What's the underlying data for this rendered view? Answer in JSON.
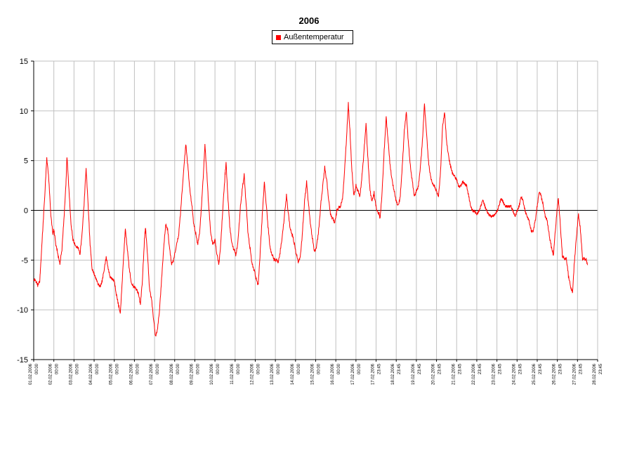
{
  "chart_data": {
    "type": "line",
    "title": "2006",
    "xlabel": "",
    "ylabel": "",
    "ylim": [
      -15,
      15
    ],
    "yticks": [
      15,
      10,
      5,
      0,
      -5,
      -10,
      -15
    ],
    "grid": true,
    "legend_position": "top-center",
    "x_tick_labels": [
      {
        "date": "01.02.2006",
        "time": "00:00"
      },
      {
        "date": "02.02.2006",
        "time": "00:00"
      },
      {
        "date": "03.02.2006",
        "time": "00:00"
      },
      {
        "date": "04.02.2006",
        "time": "00:00"
      },
      {
        "date": "05.02.2006",
        "time": "00:00"
      },
      {
        "date": "06.02.2006",
        "time": "00:00"
      },
      {
        "date": "07.02.2006",
        "time": "00:00"
      },
      {
        "date": "08.02.2006",
        "time": "00:00"
      },
      {
        "date": "09.02.2006",
        "time": "00:00"
      },
      {
        "date": "10.02.2006",
        "time": "00:00"
      },
      {
        "date": "11.02.2006",
        "time": "00:00"
      },
      {
        "date": "12.02.2006",
        "time": "00:00"
      },
      {
        "date": "13.02.2006",
        "time": "00:00"
      },
      {
        "date": "14.02.2006",
        "time": "00:00"
      },
      {
        "date": "15.02.2006",
        "time": "00:00"
      },
      {
        "date": "16.02.2006",
        "time": "00:00"
      },
      {
        "date": "17.02.2006",
        "time": "00:00"
      },
      {
        "date": "17.02.2006",
        "time": "23:45"
      },
      {
        "date": "18.02.2006",
        "time": "23:45"
      },
      {
        "date": "19.02.2006",
        "time": "23:45"
      },
      {
        "date": "20.02.2006",
        "time": "23:45"
      },
      {
        "date": "21.02.2006",
        "time": "23:45"
      },
      {
        "date": "22.02.2006",
        "time": "23:45"
      },
      {
        "date": "23.02.2006",
        "time": "23:45"
      },
      {
        "date": "24.02.2006",
        "time": "23:45"
      },
      {
        "date": "25.02.2006",
        "time": "23:45"
      },
      {
        "date": "26.02.2006",
        "time": "23:45"
      },
      {
        "date": "27.02.2006",
        "time": "23:45"
      },
      {
        "date": "28.02.2006",
        "time": "23:45"
      }
    ],
    "series": [
      {
        "name": "Außentemperatur",
        "color": "#ff0000",
        "points": [
          [
            0.0,
            -7.0
          ],
          [
            0.1,
            -7.2
          ],
          [
            0.2,
            -7.6
          ],
          [
            0.3,
            -7.2
          ],
          [
            0.35,
            -5.5
          ],
          [
            0.45,
            -2.0
          ],
          [
            0.55,
            1.5
          ],
          [
            0.65,
            5.2
          ],
          [
            0.75,
            3.0
          ],
          [
            0.85,
            -0.5
          ],
          [
            0.95,
            -2.5
          ],
          [
            1.0,
            -2.0
          ],
          [
            1.1,
            -3.5
          ],
          [
            1.2,
            -4.5
          ],
          [
            1.3,
            -5.5
          ],
          [
            1.4,
            -4.0
          ],
          [
            1.5,
            -1.0
          ],
          [
            1.6,
            2.5
          ],
          [
            1.65,
            5.4
          ],
          [
            1.75,
            2.0
          ],
          [
            1.85,
            -1.5
          ],
          [
            1.95,
            -3.0
          ],
          [
            2.0,
            -3.3
          ],
          [
            2.1,
            -3.8
          ],
          [
            2.2,
            -3.8
          ],
          [
            2.3,
            -4.5
          ],
          [
            2.4,
            -2.5
          ],
          [
            2.5,
            0.5
          ],
          [
            2.6,
            4.2
          ],
          [
            2.7,
            0.5
          ],
          [
            2.8,
            -3.5
          ],
          [
            2.9,
            -6.0
          ],
          [
            3.0,
            -6.5
          ],
          [
            3.1,
            -7.0
          ],
          [
            3.2,
            -7.5
          ],
          [
            3.3,
            -7.8
          ],
          [
            3.4,
            -7.2
          ],
          [
            3.5,
            -6.0
          ],
          [
            3.6,
            -4.8
          ],
          [
            3.7,
            -6.0
          ],
          [
            3.8,
            -6.8
          ],
          [
            3.9,
            -7.0
          ],
          [
            4.0,
            -7.2
          ],
          [
            4.1,
            -8.5
          ],
          [
            4.2,
            -9.5
          ],
          [
            4.3,
            -10.5
          ],
          [
            4.4,
            -7.0
          ],
          [
            4.5,
            -3.5
          ],
          [
            4.55,
            -2.0
          ],
          [
            4.65,
            -4.0
          ],
          [
            4.75,
            -6.0
          ],
          [
            4.85,
            -7.5
          ],
          [
            5.0,
            -7.8
          ],
          [
            5.1,
            -8.0
          ],
          [
            5.2,
            -8.5
          ],
          [
            5.3,
            -9.5
          ],
          [
            5.4,
            -7.0
          ],
          [
            5.5,
            -3.0
          ],
          [
            5.55,
            -1.8
          ],
          [
            5.65,
            -4.5
          ],
          [
            5.75,
            -8.0
          ],
          [
            5.85,
            -9.0
          ],
          [
            5.95,
            -11.0
          ],
          [
            6.05,
            -12.8
          ],
          [
            6.15,
            -12.0
          ],
          [
            6.25,
            -10.0
          ],
          [
            6.35,
            -7.0
          ],
          [
            6.45,
            -4.0
          ],
          [
            6.55,
            -1.5
          ],
          [
            6.65,
            -2.0
          ],
          [
            6.75,
            -4.0
          ],
          [
            6.85,
            -5.5
          ],
          [
            6.95,
            -5.0
          ],
          [
            7.1,
            -3.5
          ],
          [
            7.2,
            -2.5
          ],
          [
            7.3,
            0.0
          ],
          [
            7.45,
            4.0
          ],
          [
            7.55,
            6.6
          ],
          [
            7.65,
            4.5
          ],
          [
            7.75,
            2.0
          ],
          [
            7.85,
            0.5
          ],
          [
            7.95,
            -1.5
          ],
          [
            8.05,
            -2.5
          ],
          [
            8.15,
            -3.5
          ],
          [
            8.25,
            -2.0
          ],
          [
            8.35,
            1.0
          ],
          [
            8.45,
            4.5
          ],
          [
            8.5,
            6.6
          ],
          [
            8.6,
            3.5
          ],
          [
            8.7,
            0.0
          ],
          [
            8.8,
            -2.5
          ],
          [
            8.9,
            -3.5
          ],
          [
            9.0,
            -3.0
          ],
          [
            9.1,
            -4.5
          ],
          [
            9.2,
            -5.5
          ],
          [
            9.3,
            -3.0
          ],
          [
            9.4,
            0.5
          ],
          [
            9.5,
            3.5
          ],
          [
            9.55,
            4.7
          ],
          [
            9.65,
            1.0
          ],
          [
            9.75,
            -2.0
          ],
          [
            9.85,
            -3.5
          ],
          [
            9.95,
            -4.0
          ],
          [
            10.05,
            -4.5
          ],
          [
            10.15,
            -3.0
          ],
          [
            10.25,
            0.0
          ],
          [
            10.35,
            2.0
          ],
          [
            10.45,
            3.5
          ],
          [
            10.55,
            0.5
          ],
          [
            10.65,
            -2.5
          ],
          [
            10.75,
            -4.0
          ],
          [
            10.85,
            -5.5
          ],
          [
            10.95,
            -6.0
          ],
          [
            11.05,
            -7.0
          ],
          [
            11.15,
            -7.5
          ],
          [
            11.25,
            -4.0
          ],
          [
            11.35,
            -0.5
          ],
          [
            11.45,
            2.8
          ],
          [
            11.55,
            0.5
          ],
          [
            11.65,
            -2.0
          ],
          [
            11.75,
            -4.0
          ],
          [
            11.85,
            -4.5
          ],
          [
            11.95,
            -5.0
          ],
          [
            12.05,
            -5.0
          ],
          [
            12.15,
            -5.2
          ],
          [
            12.25,
            -4.0
          ],
          [
            12.35,
            -2.5
          ],
          [
            12.45,
            -0.5
          ],
          [
            12.55,
            1.5
          ],
          [
            12.65,
            -0.5
          ],
          [
            12.75,
            -2.0
          ],
          [
            12.85,
            -2.5
          ],
          [
            12.95,
            -3.5
          ],
          [
            13.05,
            -4.5
          ],
          [
            13.15,
            -5.2
          ],
          [
            13.25,
            -4.5
          ],
          [
            13.35,
            -2.0
          ],
          [
            13.45,
            1.0
          ],
          [
            13.55,
            2.8
          ],
          [
            13.65,
            0.5
          ],
          [
            13.75,
            -1.5
          ],
          [
            13.85,
            -3.0
          ],
          [
            13.95,
            -4.2
          ],
          [
            14.05,
            -3.5
          ],
          [
            14.15,
            -2.0
          ],
          [
            14.25,
            0.5
          ],
          [
            14.35,
            2.5
          ],
          [
            14.45,
            4.3
          ],
          [
            14.55,
            3.0
          ],
          [
            14.65,
            1.0
          ],
          [
            14.75,
            -0.5
          ],
          [
            14.85,
            -0.8
          ],
          [
            14.95,
            -1.2
          ],
          [
            15.05,
            0.0
          ],
          [
            15.15,
            0.3
          ],
          [
            15.25,
            0.5
          ],
          [
            15.35,
            1.5
          ],
          [
            15.45,
            4.5
          ],
          [
            15.55,
            8.0
          ],
          [
            15.62,
            10.8
          ],
          [
            15.7,
            8.0
          ],
          [
            15.8,
            4.0
          ],
          [
            15.9,
            1.5
          ],
          [
            16.0,
            2.5
          ],
          [
            16.1,
            2.0
          ],
          [
            16.2,
            1.5
          ],
          [
            16.3,
            3.5
          ],
          [
            16.4,
            6.0
          ],
          [
            16.5,
            8.8
          ],
          [
            16.6,
            5.0
          ],
          [
            16.7,
            2.0
          ],
          [
            16.8,
            1.0
          ],
          [
            16.9,
            1.8
          ],
          [
            16.95,
            1.0
          ],
          [
            17.05,
            0.0
          ],
          [
            17.15,
            -0.3
          ],
          [
            17.2,
            -0.8
          ],
          [
            17.3,
            2.0
          ],
          [
            17.4,
            6.0
          ],
          [
            17.5,
            9.4
          ],
          [
            17.6,
            7.0
          ],
          [
            17.7,
            4.5
          ],
          [
            17.8,
            3.0
          ],
          [
            17.9,
            2.0
          ],
          [
            18.0,
            1.0
          ],
          [
            18.1,
            0.5
          ],
          [
            18.2,
            1.5
          ],
          [
            18.3,
            4.5
          ],
          [
            18.4,
            8.0
          ],
          [
            18.5,
            10.0
          ],
          [
            18.6,
            7.0
          ],
          [
            18.7,
            4.5
          ],
          [
            18.8,
            3.0
          ],
          [
            18.9,
            1.5
          ],
          [
            19.0,
            2.0
          ],
          [
            19.1,
            2.5
          ],
          [
            19.2,
            4.5
          ],
          [
            19.3,
            7.0
          ],
          [
            19.4,
            10.8
          ],
          [
            19.5,
            8.0
          ],
          [
            19.6,
            5.0
          ],
          [
            19.7,
            3.5
          ],
          [
            19.8,
            2.8
          ],
          [
            19.9,
            2.5
          ],
          [
            20.0,
            2.0
          ],
          [
            20.1,
            1.5
          ],
          [
            20.2,
            4.0
          ],
          [
            20.3,
            8.5
          ],
          [
            20.4,
            10.0
          ],
          [
            20.5,
            7.0
          ],
          [
            20.6,
            5.5
          ],
          [
            20.7,
            4.5
          ],
          [
            20.8,
            3.8
          ],
          [
            20.9,
            3.5
          ],
          [
            21.0,
            3.2
          ],
          [
            21.1,
            2.5
          ],
          [
            21.2,
            2.5
          ],
          [
            21.3,
            3.0
          ],
          [
            21.4,
            2.8
          ],
          [
            21.5,
            2.5
          ],
          [
            21.6,
            1.5
          ],
          [
            21.7,
            0.5
          ],
          [
            21.8,
            0.0
          ],
          [
            21.9,
            0.0
          ],
          [
            22.0,
            -0.3
          ],
          [
            22.1,
            0.0
          ],
          [
            22.2,
            0.5
          ],
          [
            22.3,
            1.2
          ],
          [
            22.4,
            0.5
          ],
          [
            22.5,
            0.0
          ],
          [
            22.6,
            -0.3
          ],
          [
            22.7,
            -0.5
          ],
          [
            22.8,
            -0.5
          ],
          [
            22.9,
            -0.3
          ],
          [
            23.0,
            0.0
          ],
          [
            23.1,
            0.5
          ],
          [
            23.2,
            1.3
          ],
          [
            23.3,
            1.0
          ],
          [
            23.4,
            0.5
          ],
          [
            23.5,
            0.5
          ],
          [
            23.6,
            0.5
          ],
          [
            23.7,
            0.5
          ],
          [
            23.8,
            0.0
          ],
          [
            23.9,
            -0.5
          ],
          [
            24.0,
            0.0
          ],
          [
            24.1,
            0.5
          ],
          [
            24.2,
            1.5
          ],
          [
            24.3,
            1.0
          ],
          [
            24.4,
            0.0
          ],
          [
            24.5,
            -0.5
          ],
          [
            24.6,
            -1.0
          ],
          [
            24.7,
            -2.0
          ],
          [
            24.8,
            -2.0
          ],
          [
            24.9,
            -1.0
          ],
          [
            25.0,
            0.5
          ],
          [
            25.1,
            2.0
          ],
          [
            25.2,
            1.5
          ],
          [
            25.3,
            0.5
          ],
          [
            25.4,
            -0.5
          ],
          [
            25.5,
            -1.0
          ],
          [
            25.6,
            -2.5
          ],
          [
            25.7,
            -3.5
          ],
          [
            25.8,
            -4.5
          ],
          [
            25.9,
            -2.0
          ],
          [
            26.0,
            0.5
          ],
          [
            26.05,
            1.3
          ],
          [
            26.15,
            -1.5
          ],
          [
            26.25,
            -4.5
          ],
          [
            26.35,
            -4.8
          ],
          [
            26.45,
            -4.8
          ],
          [
            26.55,
            -6.5
          ],
          [
            26.65,
            -7.5
          ],
          [
            26.75,
            -8.3
          ],
          [
            26.85,
            -5.0
          ],
          [
            26.95,
            -2.5
          ],
          [
            27.05,
            -0.3
          ],
          [
            27.15,
            -2.0
          ],
          [
            27.25,
            -4.8
          ],
          [
            27.35,
            -4.8
          ],
          [
            27.45,
            -5.0
          ],
          [
            27.5,
            -5.5
          ]
        ]
      }
    ]
  }
}
